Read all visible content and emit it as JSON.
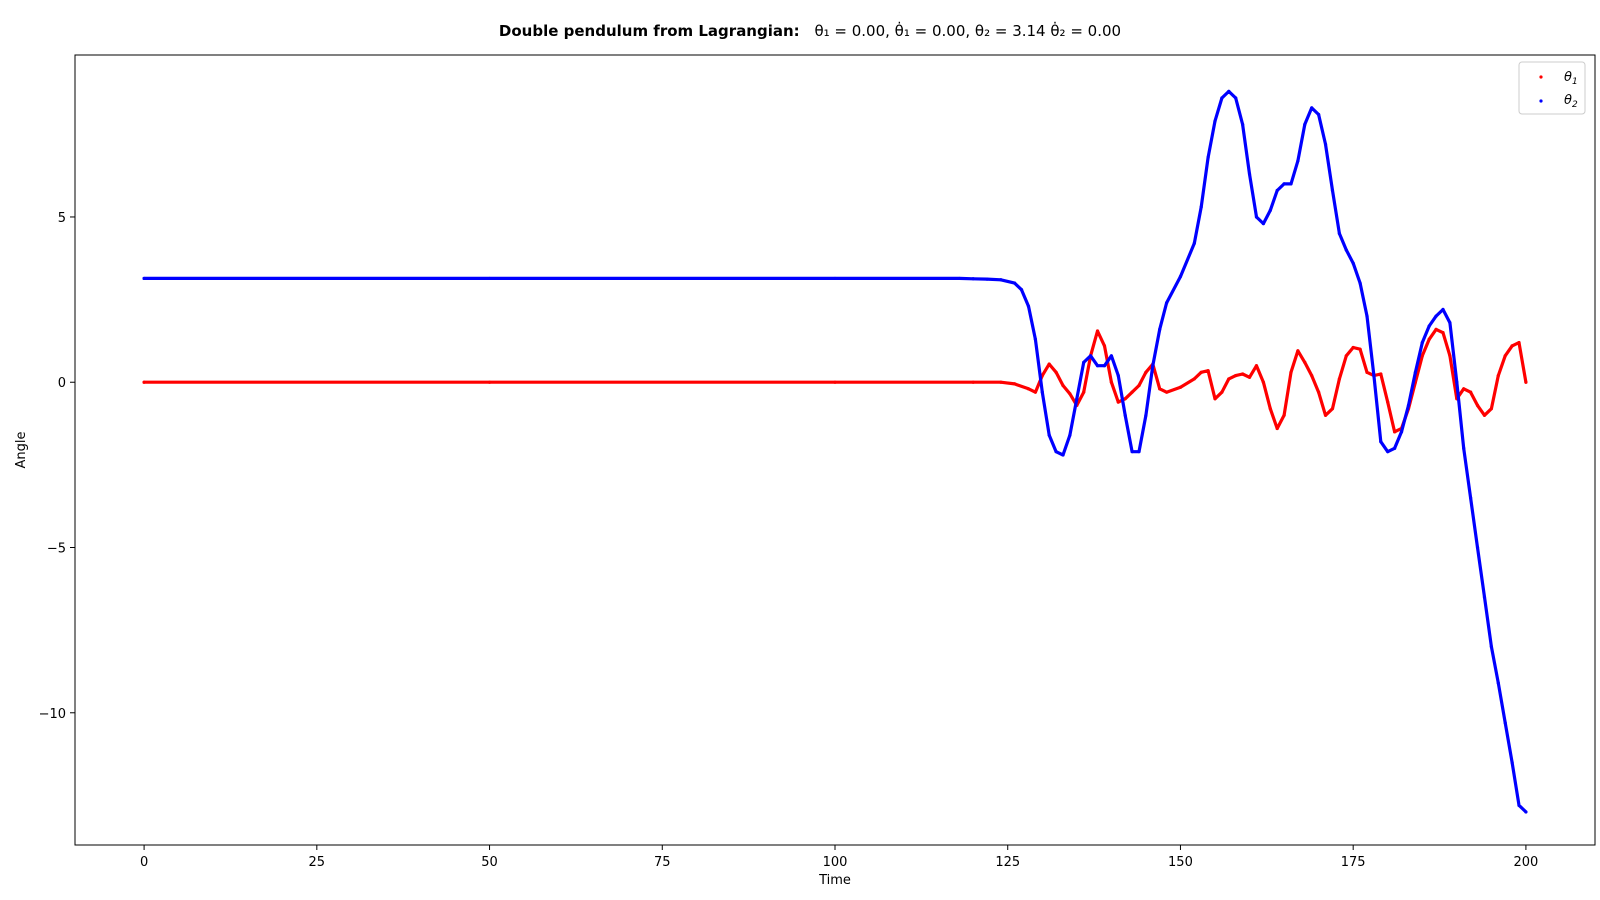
{
  "chart_data": {
    "type": "scatter",
    "title": "Double pendulum from Lagrangian:",
    "subtitle": "θ₁ = 0.00,   θ̇₁ = 0.00,  θ₂ = 3.14  θ̇₂ = 0.00",
    "xlabel": "Time",
    "ylabel": "Angle",
    "xlim": [
      -10,
      210
    ],
    "ylim": [
      -14.0,
      9.9
    ],
    "xticks": [
      0,
      25,
      50,
      75,
      100,
      125,
      150,
      175,
      200
    ],
    "yticks": [
      -10,
      -5,
      0,
      5
    ],
    "ytick_labels": [
      "−10",
      "−5",
      "0",
      "5"
    ],
    "grid": false,
    "legend_position": "top-right",
    "series": [
      {
        "name": "θ1",
        "color": "#ff0000",
        "x": [
          0,
          50,
          100,
          120,
          124,
          126,
          128,
          129,
          130,
          131,
          132,
          133,
          134,
          135,
          136,
          137,
          138,
          139,
          140,
          141,
          142,
          143,
          144,
          145,
          146,
          147,
          148,
          150,
          152,
          153,
          154,
          155,
          156,
          157,
          158,
          159,
          160,
          161,
          162,
          163,
          164,
          165,
          166,
          167,
          168,
          169,
          170,
          171,
          172,
          173,
          174,
          175,
          176,
          177,
          178,
          179,
          180,
          181,
          182,
          183,
          184,
          185,
          186,
          187,
          188,
          189,
          190,
          191,
          192,
          193,
          194,
          195,
          196,
          197,
          198,
          199,
          200
        ],
        "y": [
          0,
          0,
          0,
          0,
          0,
          -0.05,
          -0.2,
          -0.3,
          0.2,
          0.55,
          0.3,
          -0.1,
          -0.35,
          -0.7,
          -0.3,
          0.8,
          1.55,
          1.1,
          0.0,
          -0.6,
          -0.5,
          -0.3,
          -0.1,
          0.3,
          0.55,
          -0.2,
          -0.3,
          -0.15,
          0.1,
          0.3,
          0.35,
          -0.5,
          -0.3,
          0.1,
          0.2,
          0.25,
          0.15,
          0.5,
          0.0,
          -0.8,
          -1.4,
          -1.0,
          0.3,
          0.95,
          0.6,
          0.2,
          -0.3,
          -1.0,
          -0.8,
          0.1,
          0.8,
          1.05,
          1.0,
          0.3,
          0.2,
          0.25,
          -0.6,
          -1.5,
          -1.4,
          -0.8,
          0.0,
          0.8,
          1.3,
          1.6,
          1.5,
          0.8,
          -0.5,
          -0.2,
          -0.3,
          -0.7,
          -1.0,
          -0.8,
          0.2,
          0.8,
          1.1,
          1.2,
          0.0
        ]
      },
      {
        "name": "θ2",
        "color": "#0000ff",
        "x": [
          0,
          50,
          100,
          118,
          120,
          122,
          124,
          126,
          127,
          128,
          129,
          130,
          131,
          132,
          133,
          134,
          135,
          136,
          137,
          138,
          139,
          140,
          141,
          142,
          143,
          144,
          145,
          146,
          147,
          148,
          150,
          152,
          153,
          154,
          155,
          156,
          157,
          158,
          159,
          160,
          161,
          162,
          163,
          164,
          165,
          166,
          167,
          168,
          169,
          170,
          171,
          172,
          173,
          174,
          175,
          176,
          177,
          178,
          179,
          180,
          181,
          182,
          183,
          184,
          185,
          186,
          187,
          188,
          189,
          190,
          191,
          192,
          193,
          194,
          195,
          196,
          197,
          198,
          199,
          200
        ],
        "y": [
          3.14,
          3.14,
          3.14,
          3.14,
          3.13,
          3.12,
          3.1,
          3.0,
          2.8,
          2.3,
          1.3,
          -0.3,
          -1.6,
          -2.1,
          -2.2,
          -1.6,
          -0.5,
          0.6,
          0.8,
          0.5,
          0.5,
          0.8,
          0.2,
          -1.0,
          -2.1,
          -2.1,
          -1.0,
          0.5,
          1.6,
          2.4,
          3.2,
          4.2,
          5.3,
          6.8,
          7.9,
          8.6,
          8.8,
          8.6,
          7.8,
          6.3,
          5.0,
          4.8,
          5.2,
          5.8,
          6.0,
          6.0,
          6.7,
          7.8,
          8.3,
          8.1,
          7.2,
          5.8,
          4.5,
          4.0,
          3.6,
          3.0,
          2.0,
          0.2,
          -1.8,
          -2.1,
          -2.0,
          -1.5,
          -0.7,
          0.3,
          1.2,
          1.7,
          2.0,
          2.2,
          1.8,
          0.0,
          -2.0,
          -3.5,
          -5.0,
          -6.5,
          -8.0,
          -9.1,
          -10.3,
          -11.5,
          -12.8,
          -13.0
        ]
      }
    ]
  }
}
